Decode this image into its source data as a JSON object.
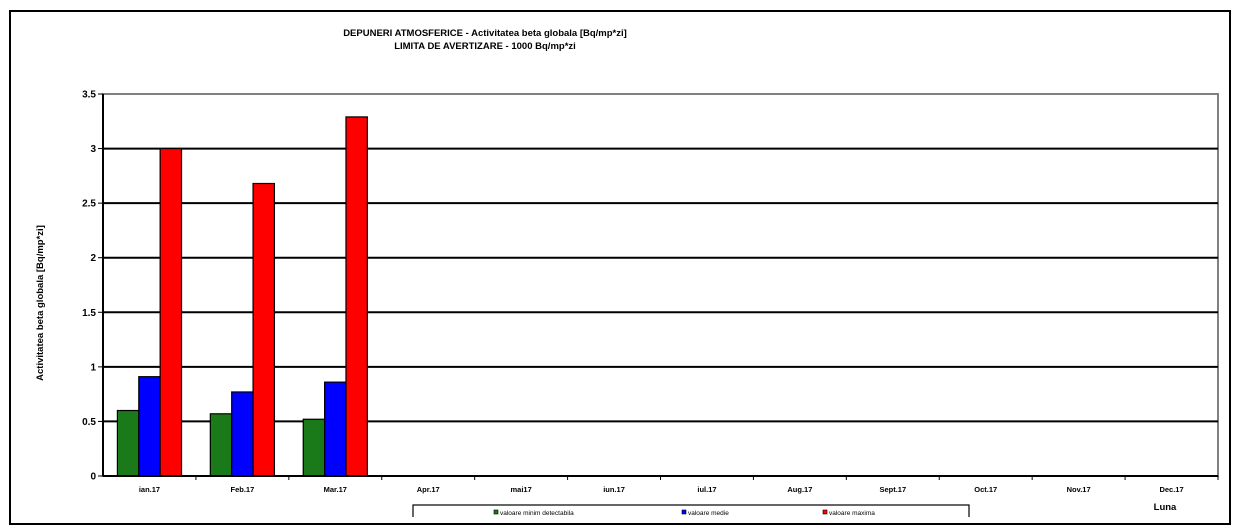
{
  "chart_data": {
    "type": "bar",
    "title": "DEPUNERI ATMOSFERICE - Activitatea beta globala [Bq/mp*zi]",
    "subtitle": "LIMITA DE AVERTIZARE - 1000 Bq/mp*zi",
    "xlabel": "Luna",
    "ylabel": "Activitatea beta globala [Bq/mp*zi]",
    "ylim": [
      0,
      3.5
    ],
    "yticks": [
      "0",
      "0.5",
      "1",
      "1.5",
      "2",
      "2.5",
      "3",
      "3.5"
    ],
    "grid": true,
    "legend_position": "bottom",
    "categories": [
      "ian.17",
      "Feb.17",
      "Mar.17",
      "Apr.17",
      "mai17",
      "iun.17",
      "iul.17",
      "Aug.17",
      "Sept.17",
      "Oct.17",
      "Nov.17",
      "Dec.17"
    ],
    "series": [
      {
        "name": "valoare minim detectabila",
        "color": "#1a7a1a",
        "values": [
          0.6,
          0.57,
          0.52,
          null,
          null,
          null,
          null,
          null,
          null,
          null,
          null,
          null
        ]
      },
      {
        "name": "valoare medie",
        "color": "#0000ff",
        "values": [
          0.91,
          0.77,
          0.86,
          null,
          null,
          null,
          null,
          null,
          null,
          null,
          null,
          null
        ]
      },
      {
        "name": "valoare maxima",
        "color": "#ff0000",
        "values": [
          3.0,
          2.68,
          3.29,
          null,
          null,
          null,
          null,
          null,
          null,
          null,
          null,
          null
        ]
      }
    ]
  }
}
